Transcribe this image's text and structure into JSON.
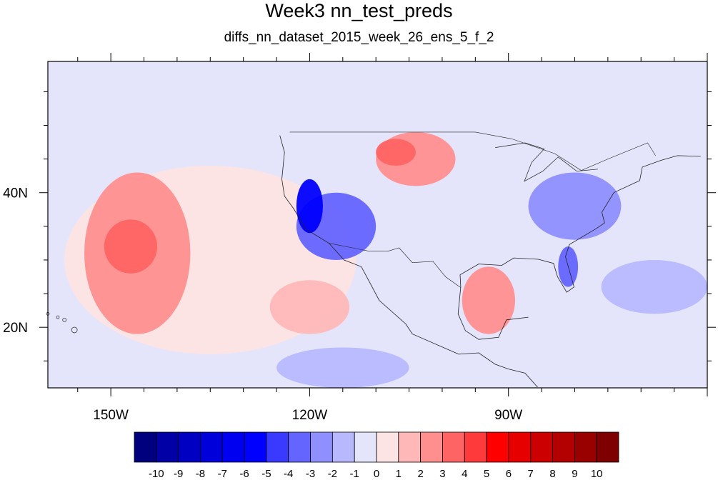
{
  "chart_data": {
    "type": "heatmap",
    "title": "Week3 nn_test_preds",
    "subtitle": "diffs_nn_dataset_2015_week_26_ens_5_f_2",
    "xlabel": "",
    "ylabel": "",
    "lon_range": [
      -159.5,
      -60
    ],
    "lat_range": [
      11,
      59.5
    ],
    "x_ticks": [
      {
        "value": -150,
        "label": "150W"
      },
      {
        "value": -120,
        "label": "120W"
      },
      {
        "value": -90,
        "label": "90W"
      }
    ],
    "y_ticks": [
      {
        "value": 40,
        "label": "40N"
      },
      {
        "value": 20,
        "label": "20N"
      }
    ],
    "colorbar": {
      "labels": [
        "-10",
        "-9",
        "-8",
        "-7",
        "-6",
        "-5",
        "-4",
        "-3",
        "-2",
        "-1",
        "0",
        "1",
        "2",
        "3",
        "4",
        "5",
        "6",
        "7",
        "8",
        "9",
        "10"
      ],
      "colors": [
        "#00007f",
        "#0000a6",
        "#0000c2",
        "#0000db",
        "#0000f0",
        "#0000ff",
        "#3a3aff",
        "#6464ff",
        "#8f8fff",
        "#b8b8ff",
        "#e4e4fb",
        "#fde4e4",
        "#ffb8b8",
        "#ff8f8f",
        "#ff6464",
        "#ff3a3a",
        "#ff0000",
        "#e60000",
        "#cc0000",
        "#b30000",
        "#990000",
        "#7f0000"
      ]
    },
    "field_regions": [
      {
        "name": "warm anomaly Pacific subtropical",
        "lon": -146,
        "lat": 31,
        "rx": 8,
        "ry": 12,
        "value": 2
      },
      {
        "name": "warm anomaly Pacific core",
        "lon": -147,
        "lat": 32,
        "rx": 4,
        "ry": 4,
        "value": 3
      },
      {
        "name": "warm anomaly NE Pacific",
        "lon": -120,
        "lat": 23,
        "rx": 6,
        "ry": 4,
        "value": 1.5
      },
      {
        "name": "warm anomaly northern plains",
        "lon": -104,
        "lat": 45,
        "rx": 6,
        "ry": 4,
        "value": 2
      },
      {
        "name": "warm anomaly Montana",
        "lon": -107,
        "lat": 46,
        "rx": 3,
        "ry": 2,
        "value": 3
      },
      {
        "name": "warm anomaly Gulf of Mexico",
        "lon": -93,
        "lat": 24,
        "rx": 4,
        "ry": 5,
        "value": 2
      },
      {
        "name": "cold anomaly southwest US",
        "lon": -116,
        "lat": 35,
        "rx": 6,
        "ry": 5,
        "value": -4
      },
      {
        "name": "cold anomaly California",
        "lon": -120,
        "lat": 38,
        "rx": 2,
        "ry": 4,
        "value": -6
      },
      {
        "name": "cold anomaly eastern US",
        "lon": -80,
        "lat": 38,
        "rx": 7,
        "ry": 5,
        "value": -3
      },
      {
        "name": "cold anomaly Florida",
        "lon": -81,
        "lat": 29,
        "rx": 1.5,
        "ry": 3,
        "value": -4
      },
      {
        "name": "cold anomaly eastern Pacific tropics",
        "lon": -115,
        "lat": 14,
        "rx": 10,
        "ry": 3,
        "value": -2
      },
      {
        "name": "cold anomaly western Atlantic",
        "lon": -68,
        "lat": 26,
        "rx": 8,
        "ry": 4,
        "value": -2
      }
    ]
  }
}
